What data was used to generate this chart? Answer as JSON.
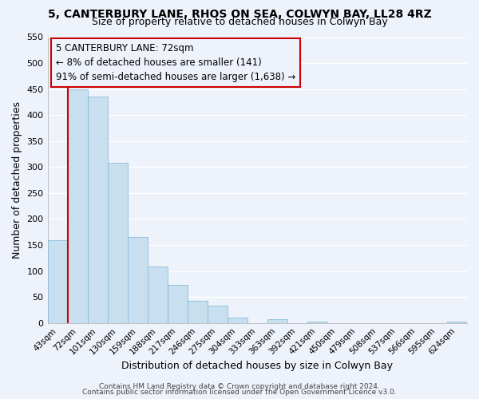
{
  "title": "5, CANTERBURY LANE, RHOS ON SEA, COLWYN BAY, LL28 4RZ",
  "subtitle": "Size of property relative to detached houses in Colwyn Bay",
  "xlabel": "Distribution of detached houses by size in Colwyn Bay",
  "ylabel": "Number of detached properties",
  "bar_labels": [
    "43sqm",
    "72sqm",
    "101sqm",
    "130sqm",
    "159sqm",
    "188sqm",
    "217sqm",
    "246sqm",
    "275sqm",
    "304sqm",
    "333sqm",
    "363sqm",
    "392sqm",
    "421sqm",
    "450sqm",
    "479sqm",
    "508sqm",
    "537sqm",
    "566sqm",
    "595sqm",
    "624sqm"
  ],
  "bar_heights": [
    160,
    450,
    435,
    308,
    165,
    108,
    74,
    43,
    33,
    10,
    0,
    7,
    0,
    3,
    0,
    0,
    0,
    0,
    0,
    0,
    3
  ],
  "highlight_bar_index": 1,
  "bar_color": "#c8dff0",
  "bar_edge_color": "#7eb3d4",
  "highlight_edge_color": "#cc0000",
  "annotation_text": "5 CANTERBURY LANE: 72sqm\n← 8% of detached houses are smaller (141)\n91% of semi-detached houses are larger (1,638) →",
  "annotation_box_edge_color": "#cc0000",
  "ylim": [
    0,
    550
  ],
  "yticks": [
    0,
    50,
    100,
    150,
    200,
    250,
    300,
    350,
    400,
    450,
    500,
    550
  ],
  "footer_line1": "Contains HM Land Registry data © Crown copyright and database right 2024.",
  "footer_line2": "Contains public sector information licensed under the Open Government Licence v3.0.",
  "bg_color": "#eef2fb",
  "grid_color": "#ffffff"
}
